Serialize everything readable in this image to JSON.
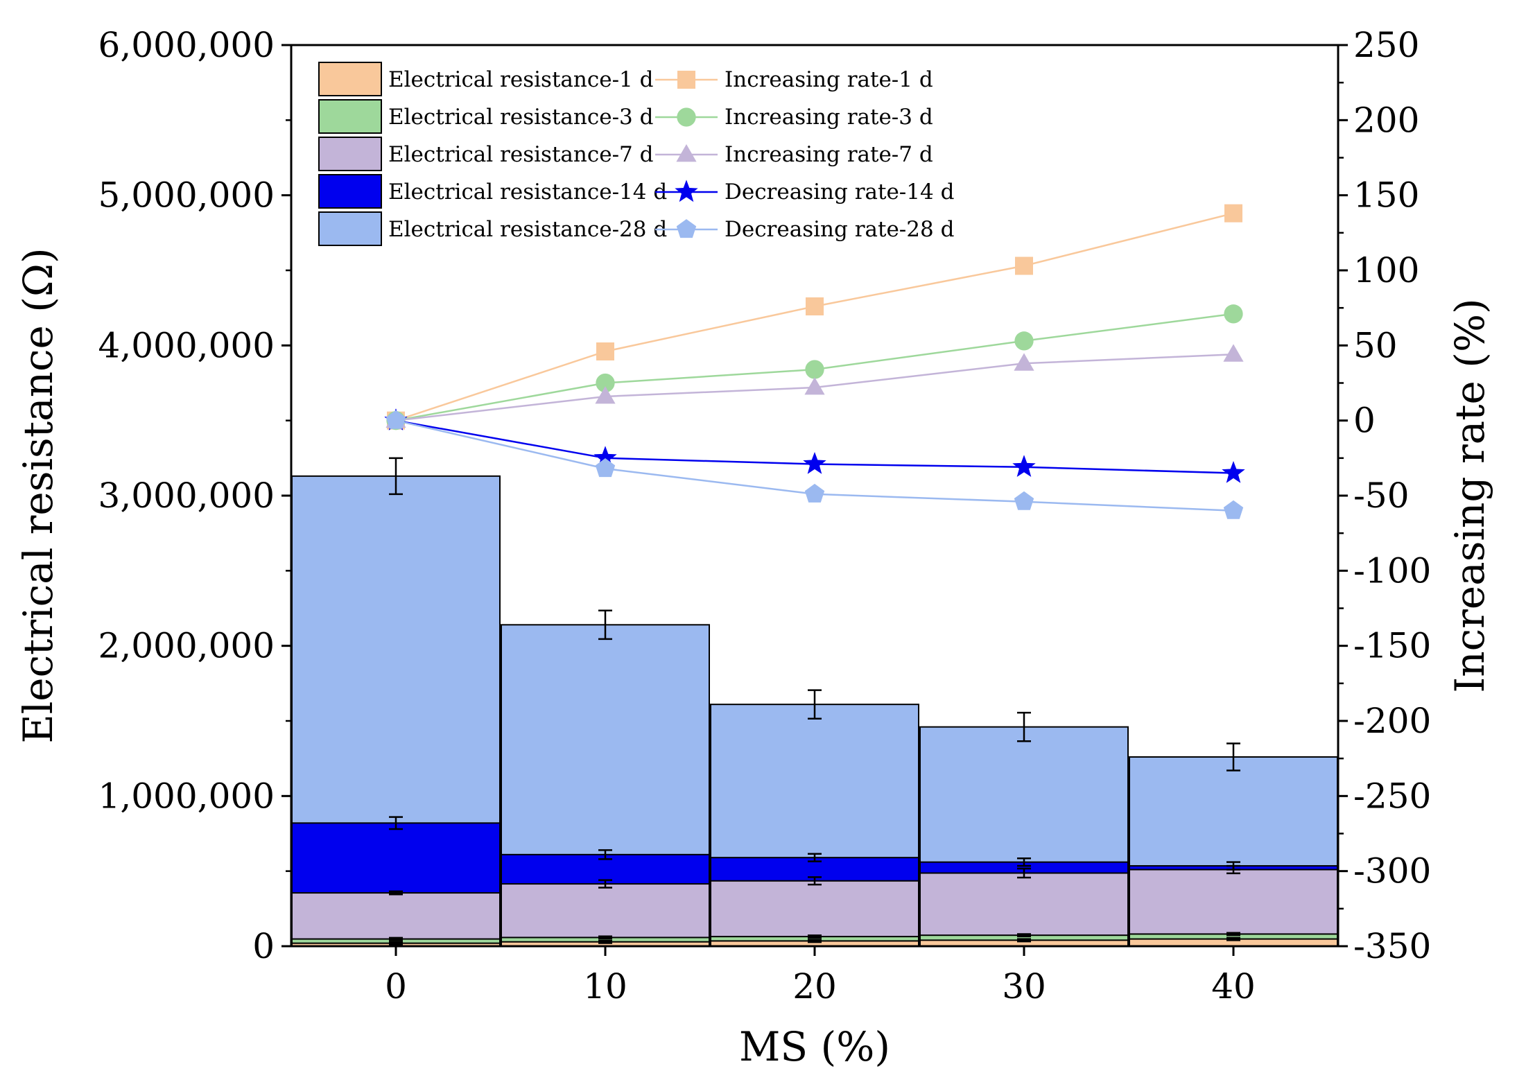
{
  "chart_data": {
    "type": "bar",
    "xlabel": "MS (%)",
    "ylabel": "Electrical resistance (Ω)",
    "y2label": "Increasing rate (%)",
    "categories": [
      "0",
      "10",
      "20",
      "30",
      "40"
    ],
    "ylim": [
      0,
      6000000
    ],
    "y_ticks": [
      0,
      1000000,
      2000000,
      3000000,
      4000000,
      5000000,
      6000000
    ],
    "y_tick_labels": [
      "0",
      "1,000,000",
      "2,000,000",
      "3,000,000",
      "4,000,000",
      "5,000,000",
      "6,000,000"
    ],
    "y2lim": [
      -350,
      250
    ],
    "y2_ticks": [
      -350,
      -300,
      -250,
      -200,
      -150,
      -100,
      -50,
      0,
      50,
      100,
      150,
      200,
      250
    ],
    "y2_tick_labels": [
      "-350",
      "-300",
      "-250",
      "-200",
      "-150",
      "-100",
      "-50",
      "0",
      "50",
      "100",
      "150",
      "200",
      "250"
    ],
    "grid": false,
    "legend_position": "top-left",
    "bar_series": [
      {
        "name": "Electrical resistance-1 d",
        "color": "#f9c89b",
        "values": [
          20000,
          29000,
          35000,
          40000,
          48000
        ],
        "errors": [
          8000,
          8000,
          8000,
          8000,
          8000
        ]
      },
      {
        "name": "Electrical resistance-3 d",
        "color": "#9ed89b",
        "values": [
          48000,
          58000,
          64000,
          73000,
          81000
        ],
        "errors": [
          8000,
          8000,
          8000,
          8000,
          8000
        ]
      },
      {
        "name": "Electrical resistance-7 d",
        "color": "#c3b4d8",
        "values": [
          355000,
          415000,
          435000,
          487000,
          510000
        ],
        "errors": [
          10000,
          25000,
          25000,
          30000,
          25000
        ]
      },
      {
        "name": "Electrical resistance-14 d",
        "color": "#0000ee",
        "values": [
          820000,
          610000,
          590000,
          560000,
          535000
        ],
        "errors": [
          40000,
          30000,
          25000,
          25000,
          25000
        ]
      },
      {
        "name": "Electrical resistance-28 d",
        "color": "#9bb9f0",
        "values": [
          3130000,
          2140000,
          1610000,
          1460000,
          1260000
        ],
        "errors": [
          120000,
          95000,
          95000,
          95000,
          90000
        ]
      }
    ],
    "line_series": [
      {
        "name": "Increasing rate-1 d",
        "color": "#f9c89b",
        "marker": "square",
        "values": [
          0,
          46,
          76,
          103,
          138
        ]
      },
      {
        "name": "Increasing rate-3 d",
        "color": "#9ed89b",
        "marker": "circle",
        "values": [
          0,
          25,
          34,
          53,
          71
        ]
      },
      {
        "name": "Increasing rate-7 d",
        "color": "#c3b4d8",
        "marker": "triangle",
        "values": [
          0,
          16,
          22,
          38,
          44
        ]
      },
      {
        "name": "Decreasing rate-14 d",
        "color": "#0000ee",
        "marker": "star",
        "values": [
          0,
          -25,
          -29,
          -31,
          -35
        ]
      },
      {
        "name": "Decreasing rate-28 d",
        "color": "#9bb9f0",
        "marker": "pentagon",
        "values": [
          0,
          -32,
          -49,
          -54,
          -60
        ]
      }
    ]
  }
}
